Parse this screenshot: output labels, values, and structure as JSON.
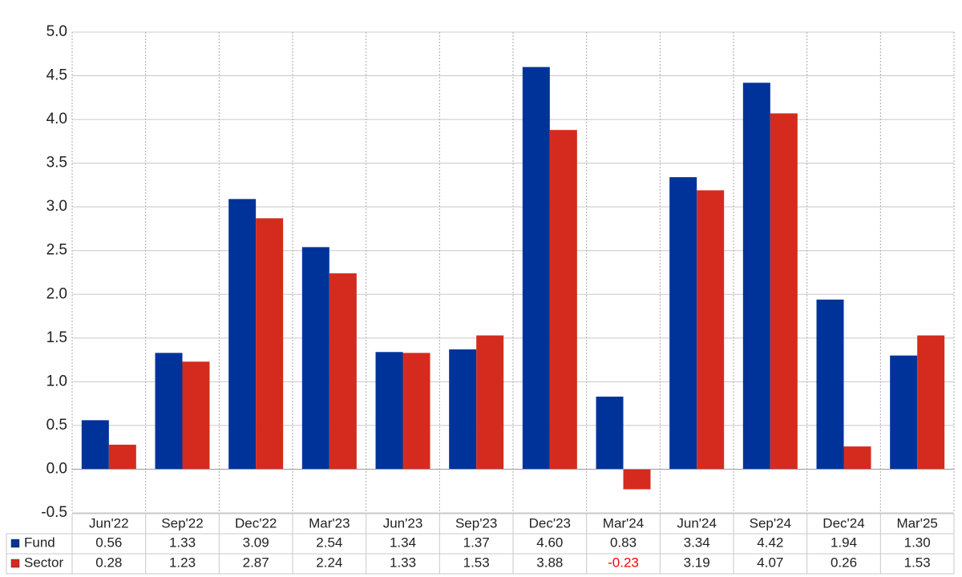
{
  "chart_data": {
    "type": "bar",
    "categories": [
      "Jun'22",
      "Sep'22",
      "Dec'22",
      "Mar'23",
      "Jun'23",
      "Sep'23",
      "Dec'23",
      "Mar'24",
      "Jun'24",
      "Sep'24",
      "Dec'24",
      "Mar'25"
    ],
    "series": [
      {
        "name": "Fund",
        "color": "#003399",
        "values": [
          0.56,
          1.33,
          3.09,
          2.54,
          1.34,
          1.37,
          4.6,
          0.83,
          3.34,
          4.42,
          1.94,
          1.3
        ],
        "value_labels": [
          "0.56",
          "1.33",
          "3.09",
          "2.54",
          "1.34",
          "1.37",
          "4.60",
          "0.83",
          "3.34",
          "4.42",
          "1.94",
          "1.30"
        ]
      },
      {
        "name": "Sector",
        "color": "#d52b1e",
        "values": [
          0.28,
          1.23,
          2.87,
          2.24,
          1.33,
          1.53,
          3.88,
          -0.23,
          3.19,
          4.07,
          0.26,
          1.53
        ],
        "value_labels": [
          "0.28",
          "1.23",
          "2.87",
          "2.24",
          "1.33",
          "1.53",
          "3.88",
          "-0.23",
          "3.19",
          "4.07",
          "0.26",
          "1.53"
        ]
      }
    ],
    "negative_label_color": "#ff0000",
    "ylim": [
      -0.5,
      5.0
    ],
    "yticks": [
      -0.5,
      {
        "value": 0,
        "label": "0.0"
      },
      0.5,
      {
        "value": 1,
        "label": "1.0"
      },
      1.5,
      {
        "value": 2,
        "label": "2.0"
      },
      2.5,
      {
        "value": 3,
        "label": "3.0"
      },
      3.5,
      {
        "value": 4,
        "label": "4.0"
      },
      4.5,
      {
        "value": 5,
        "label": "5.0"
      }
    ],
    "grid": true
  }
}
